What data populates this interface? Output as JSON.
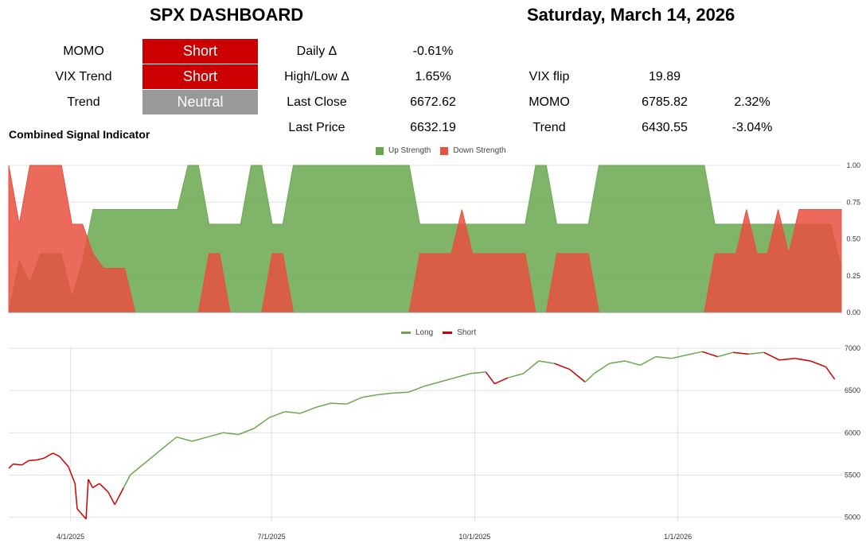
{
  "header": {
    "title": "SPX DASHBOARD",
    "date": "Saturday, March 14, 2026"
  },
  "signals": [
    {
      "label": "MOMO",
      "value": "Short",
      "color": "#cc0000"
    },
    {
      "label": "VIX Trend",
      "value": "Short",
      "color": "#cc0000"
    },
    {
      "label": "Trend",
      "value": "Neutral",
      "color": "#999999"
    }
  ],
  "stats": [
    {
      "label": "Daily Δ",
      "value": "-0.61%"
    },
    {
      "label": "High/Low Δ",
      "value": "1.65%"
    },
    {
      "label": "Last Close",
      "value": "6672.62"
    },
    {
      "label": "Last Price",
      "value": "6632.19"
    }
  ],
  "levels": [
    {
      "label": "VIX flip",
      "value": "19.89",
      "pct": ""
    },
    {
      "label": "MOMO",
      "value": "6785.82",
      "pct": "2.32%"
    },
    {
      "label": "Trend",
      "value": "6430.55",
      "pct": "-3.04%"
    }
  ],
  "combined_signal_label": "Combined Signal Indicator",
  "colors": {
    "up": "#6aa84f",
    "down": "#e8503f",
    "long": "#6aa84f",
    "short": "#cc0000"
  },
  "chart_data": [
    {
      "type": "area",
      "title": "",
      "series": [
        {
          "name": "Up Strength",
          "color": "#6aa84f",
          "values": [
            0,
            0.35,
            0.2,
            0.4,
            0.4,
            0.4,
            0.1,
            0.35,
            0.7,
            0.7,
            0.7,
            0.7,
            0.7,
            0.7,
            0.7,
            0.7,
            0.7,
            1,
            1,
            0.6,
            0.6,
            0.6,
            0.6,
            1,
            1,
            0.6,
            0.6,
            1,
            1,
            1,
            1,
            1,
            1,
            1,
            1,
            1,
            1,
            1,
            1,
            0.6,
            0.6,
            0.6,
            0.6,
            0.6,
            0.6,
            0.6,
            0.6,
            0.6,
            0.6,
            0.6,
            1,
            1,
            0.6,
            0.6,
            0.6,
            0.6,
            1,
            1,
            1,
            1,
            1,
            1,
            1,
            1,
            1,
            1,
            1,
            0.6,
            0.6,
            0.6,
            0.6,
            0.6,
            0.6,
            0.6,
            0.6,
            0.6,
            0.6,
            0.6,
            0.6,
            0.3
          ]
        },
        {
          "name": "Down Strength",
          "color": "#e8503f",
          "values": [
            1,
            0.6,
            1,
            1,
            1,
            1,
            0.6,
            0.6,
            0.4,
            0.3,
            0.3,
            0.3,
            0,
            0,
            0,
            0,
            0,
            0,
            0,
            0.4,
            0.4,
            0,
            0,
            0,
            0,
            0.4,
            0.4,
            0,
            0,
            0,
            0,
            0,
            0,
            0,
            0,
            0,
            0,
            0,
            0,
            0.4,
            0.4,
            0.4,
            0.4,
            0.7,
            0.4,
            0.4,
            0.4,
            0.4,
            0.4,
            0.4,
            0,
            0,
            0.4,
            0.4,
            0.4,
            0.4,
            0,
            0,
            0,
            0,
            0,
            0,
            0,
            0,
            0,
            0,
            0,
            0.4,
            0.4,
            0.4,
            0.7,
            0.4,
            0.4,
            0.7,
            0.4,
            0.7,
            0.7,
            0.7,
            0.7,
            0.7
          ]
        }
      ],
      "ylim": [
        0,
        1
      ],
      "yticks": [
        "0.00",
        "0.25",
        "0.50",
        "0.75",
        "1.00"
      ],
      "legend": "top-center"
    },
    {
      "type": "line",
      "title": "",
      "series": [
        {
          "name": "Long",
          "color": "#6aa84f"
        },
        {
          "name": "Short",
          "color": "#cc0000"
        }
      ],
      "x_ticks": [
        "4/1/2025",
        "7/1/2025",
        "10/1/2025",
        "1/1/2026"
      ],
      "x_start": "2025-03-04",
      "points": [
        [
          "2025-03-04",
          5580,
          "S"
        ],
        [
          "2025-03-06",
          5630,
          "S"
        ],
        [
          "2025-03-10",
          5620,
          "S"
        ],
        [
          "2025-03-13",
          5670,
          "S"
        ],
        [
          "2025-03-17",
          5680,
          "S"
        ],
        [
          "2025-03-20",
          5700,
          "S"
        ],
        [
          "2025-03-24",
          5760,
          "S"
        ],
        [
          "2025-03-27",
          5720,
          "S"
        ],
        [
          "2025-03-31",
          5600,
          "S"
        ],
        [
          "2025-04-03",
          5400,
          "S"
        ],
        [
          "2025-04-04",
          5100,
          "S"
        ],
        [
          "2025-04-08",
          4980,
          "S"
        ],
        [
          "2025-04-09",
          5450,
          "S"
        ],
        [
          "2025-04-11",
          5350,
          "S"
        ],
        [
          "2025-04-14",
          5400,
          "S"
        ],
        [
          "2025-04-18",
          5300,
          "S"
        ],
        [
          "2025-04-21",
          5150,
          "S"
        ],
        [
          "2025-04-25",
          5350,
          "S"
        ],
        [
          "2025-04-28",
          5500,
          "L"
        ],
        [
          "2025-05-05",
          5650,
          "L"
        ],
        [
          "2025-05-12",
          5800,
          "L"
        ],
        [
          "2025-05-19",
          5950,
          "L"
        ],
        [
          "2025-05-26",
          5900,
          "L"
        ],
        [
          "2025-06-02",
          5950,
          "L"
        ],
        [
          "2025-06-09",
          6000,
          "L"
        ],
        [
          "2025-06-16",
          5980,
          "L"
        ],
        [
          "2025-06-23",
          6050,
          "L"
        ],
        [
          "2025-06-30",
          6180,
          "L"
        ],
        [
          "2025-07-07",
          6250,
          "L"
        ],
        [
          "2025-07-14",
          6230,
          "L"
        ],
        [
          "2025-07-21",
          6300,
          "L"
        ],
        [
          "2025-07-28",
          6350,
          "L"
        ],
        [
          "2025-08-04",
          6340,
          "L"
        ],
        [
          "2025-08-11",
          6420,
          "L"
        ],
        [
          "2025-08-18",
          6450,
          "L"
        ],
        [
          "2025-08-25",
          6470,
          "L"
        ],
        [
          "2025-09-01",
          6480,
          "L"
        ],
        [
          "2025-09-08",
          6550,
          "L"
        ],
        [
          "2025-09-15",
          6600,
          "L"
        ],
        [
          "2025-09-22",
          6650,
          "L"
        ],
        [
          "2025-09-29",
          6700,
          "L"
        ],
        [
          "2025-10-06",
          6720,
          "L"
        ],
        [
          "2025-10-10",
          6580,
          "S"
        ],
        [
          "2025-10-16",
          6650,
          "S"
        ],
        [
          "2025-10-23",
          6700,
          "L"
        ],
        [
          "2025-10-30",
          6850,
          "L"
        ],
        [
          "2025-11-06",
          6820,
          "L"
        ],
        [
          "2025-11-13",
          6750,
          "S"
        ],
        [
          "2025-11-20",
          6600,
          "S"
        ],
        [
          "2025-11-24",
          6700,
          "L"
        ],
        [
          "2025-12-01",
          6820,
          "L"
        ],
        [
          "2025-12-08",
          6850,
          "L"
        ],
        [
          "2025-12-15",
          6800,
          "L"
        ],
        [
          "2025-12-22",
          6900,
          "L"
        ],
        [
          "2025-12-29",
          6880,
          "L"
        ],
        [
          "2026-01-05",
          6920,
          "L"
        ],
        [
          "2026-01-12",
          6960,
          "L"
        ],
        [
          "2026-01-19",
          6900,
          "S"
        ],
        [
          "2026-01-26",
          6950,
          "L"
        ],
        [
          "2026-02-02",
          6930,
          "S"
        ],
        [
          "2026-02-09",
          6950,
          "L"
        ],
        [
          "2026-02-16",
          6860,
          "S"
        ],
        [
          "2026-02-23",
          6880,
          "S"
        ],
        [
          "2026-03-02",
          6850,
          "S"
        ],
        [
          "2026-03-09",
          6780,
          "S"
        ],
        [
          "2026-03-13",
          6632,
          "S"
        ]
      ],
      "yticks": [
        "5000",
        "5500",
        "6000",
        "6500",
        "7000"
      ],
      "ylim": [
        4950,
        7000
      ],
      "legend": "top-center"
    }
  ]
}
